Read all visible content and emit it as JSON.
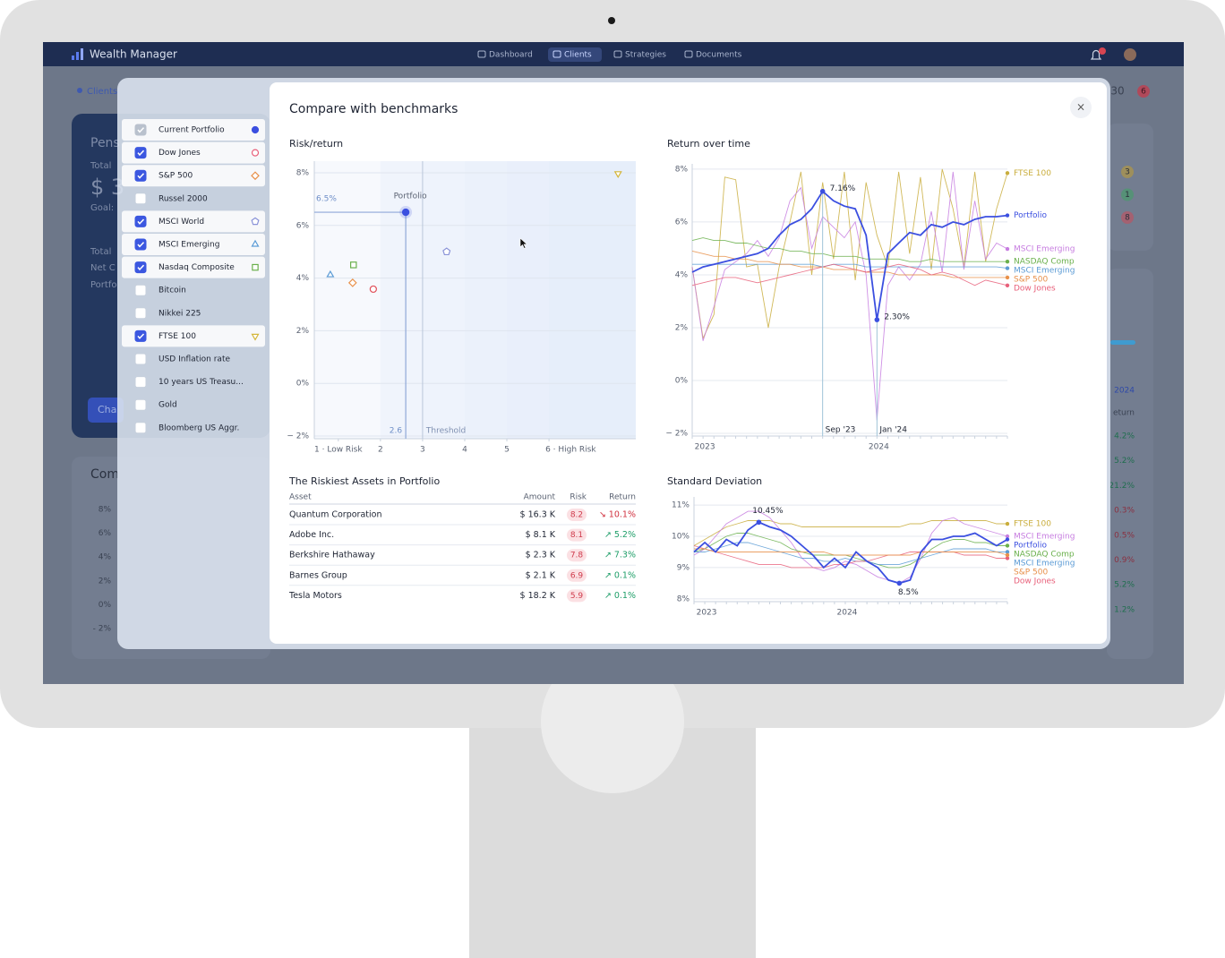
{
  "navbar": {
    "brand": "Wealth Manager",
    "items": [
      {
        "label": "Dashboard",
        "active": false
      },
      {
        "label": "Clients",
        "active": true
      },
      {
        "label": "Strategies",
        "active": false
      },
      {
        "label": "Documents",
        "active": false
      }
    ]
  },
  "background": {
    "breadcrumb": "Clients",
    "card_lines": [
      "Pens",
      "Total",
      "$ 3",
      "Goal:",
      "Total",
      "Net C",
      "Portfo"
    ],
    "button": "Cha",
    "section": "Com",
    "axis_labels": [
      "8%",
      "6%",
      "4%",
      "2%",
      "0%",
      "- 2%"
    ],
    "count": "30",
    "badge": "6",
    "status_badges": [
      {
        "text": "3",
        "color": "#c9a227"
      },
      {
        "text": "1",
        "color": "#3aa55d"
      },
      {
        "text": "8",
        "color": "#d64552"
      }
    ],
    "column_header": "2024",
    "column_subheader": "eturn",
    "column_values": [
      {
        "text": "4.2%",
        "trend": "up"
      },
      {
        "text": "5.2%",
        "trend": "up"
      },
      {
        "text": "21.2%",
        "trend": "up"
      },
      {
        "text": "0.3%",
        "trend": "down"
      },
      {
        "text": "0.5%",
        "trend": "down"
      },
      {
        "text": "0.9%",
        "trend": "down"
      },
      {
        "text": "5.2%",
        "trend": "up"
      },
      {
        "text": "1.2%",
        "trend": "up"
      }
    ]
  },
  "modal": {
    "title": "Compare with benchmarks",
    "close": "×",
    "benchmarks": [
      {
        "label": "Current Portfolio",
        "checked": true,
        "locked": true,
        "marker": "dot",
        "color": "#3b4fe0"
      },
      {
        "label": "Dow Jones",
        "checked": true,
        "marker": "circle",
        "color": "#e8607a"
      },
      {
        "label": "S&P 500",
        "checked": true,
        "marker": "diamond",
        "color": "#e8904a"
      },
      {
        "label": "Russel 2000",
        "checked": false
      },
      {
        "label": "MSCI World",
        "checked": true,
        "marker": "pentagon",
        "color": "#8a93d8"
      },
      {
        "label": "MSCI Emerging",
        "checked": true,
        "marker": "triangle",
        "color": "#5b9bd5"
      },
      {
        "label": "Nasdaq Composite",
        "checked": true,
        "marker": "square",
        "color": "#6ab04c"
      },
      {
        "label": "Bitcoin",
        "checked": false
      },
      {
        "label": "Nikkei 225",
        "checked": false
      },
      {
        "label": "FTSE 100",
        "checked": true,
        "marker": "triangle-down",
        "color": "#d4b63a"
      },
      {
        "label": "USD Inflation rate",
        "checked": false
      },
      {
        "label": "10 years US Treasu...",
        "checked": false
      },
      {
        "label": "Gold",
        "checked": false
      },
      {
        "label": "Bloomberg US Aggr.",
        "checked": false
      }
    ],
    "risk_return": {
      "type": "scatter",
      "title": "Risk/return",
      "xlim": [
        0.43,
        8.06
      ],
      "ylim": [
        -2.1,
        8.44
      ],
      "xticks": [
        {
          "value": 1,
          "label": "1 · Low Risk"
        },
        2,
        3,
        4,
        5,
        {
          "value": 6,
          "label": "6 · High Risk"
        }
      ],
      "yticks": [
        {
          "value": 8,
          "label": "8%"
        },
        {
          "value": 6,
          "label": "6%"
        },
        {
          "value": 4,
          "label": "4%"
        },
        {
          "value": 2,
          "label": "2%"
        },
        {
          "value": 0,
          "label": "0%"
        },
        {
          "value": -2,
          "label": "− 2%"
        }
      ],
      "grid": true,
      "points": [
        {
          "x": 0.81,
          "y": 4.12,
          "marker": "triangle",
          "color": "#5b9bd5"
        },
        {
          "x": 1.36,
          "y": 4.5,
          "marker": "square",
          "color": "#6ab04c"
        },
        {
          "x": 1.34,
          "y": 3.82,
          "marker": "diamond",
          "color": "#e8904a"
        },
        {
          "x": 1.83,
          "y": 3.58,
          "marker": "circle",
          "color": "#e0505a"
        },
        {
          "x": 3.57,
          "y": 5.0,
          "marker": "pentagon",
          "color": "#8a93d8"
        },
        {
          "x": 7.64,
          "y": 7.97,
          "marker": "triangle-down",
          "color": "#d4b63a"
        }
      ],
      "portfolio": {
        "label": "Portfolio",
        "x": 2.6,
        "y": 6.5,
        "x_label": "2.6",
        "y_label": "6.5%",
        "color": "#3b4fe0"
      },
      "threshold": {
        "label": "Threshold",
        "x": 3
      }
    },
    "return_over_time": {
      "type": "line",
      "title": "Return over time",
      "categories": [
        null,
        "2023",
        null,
        null,
        null,
        null,
        null,
        null,
        null,
        null,
        null,
        null,
        null,
        null,
        null,
        null,
        null,
        "2024",
        null,
        null,
        null,
        null,
        null,
        null,
        null,
        null,
        null,
        null,
        null,
        null
      ],
      "x_annotations": [
        null,
        null,
        null,
        null,
        null,
        null,
        null,
        null,
        null,
        null,
        null,
        null,
        "Sep '23",
        null,
        null,
        null,
        null,
        "Jan '24",
        null,
        null,
        null,
        null,
        null,
        null,
        null,
        null,
        null,
        null,
        null,
        null
      ],
      "ylim": [
        -2.1,
        8.2
      ],
      "yticks": [
        {
          "value": 8,
          "label": "8%"
        },
        {
          "value": 6,
          "label": "6%"
        },
        {
          "value": 4,
          "label": "4%"
        },
        {
          "value": 2,
          "label": "2%"
        },
        {
          "value": 0,
          "label": "0%"
        },
        {
          "value": -2,
          "label": "− 2%"
        }
      ],
      "grid": true,
      "series": [
        {
          "name": "FTSE 100",
          "color": "#c9ad3c",
          "values": [
            4.3,
            1.6,
            2.5,
            7.7,
            7.6,
            4.3,
            4.4,
            2.0,
            4.3,
            6.0,
            7.9,
            4.0,
            7.5,
            4.6,
            7.9,
            3.8,
            7.5,
            5.5,
            4.3,
            7.9,
            4.8,
            7.7,
            4.2,
            8.0,
            6.5,
            4.3,
            7.9,
            4.5,
            6.5,
            7.85
          ]
        },
        {
          "name": "Portfolio",
          "color": "#3b4fe0",
          "highlight": true,
          "values": [
            4.1,
            4.3,
            4.4,
            4.5,
            4.6,
            4.7,
            4.8,
            5.0,
            5.5,
            5.9,
            6.1,
            6.5,
            7.16,
            6.8,
            6.6,
            6.5,
            5.5,
            2.3,
            4.8,
            5.2,
            5.6,
            5.5,
            5.9,
            5.8,
            6.0,
            5.9,
            6.1,
            6.2,
            6.2,
            6.25
          ],
          "value_labels": [
            null,
            null,
            null,
            null,
            null,
            null,
            null,
            null,
            null,
            null,
            null,
            null,
            "7.16%",
            null,
            null,
            null,
            null,
            "2.30%",
            null,
            null,
            null,
            null,
            null,
            null,
            null,
            null,
            null,
            null,
            null,
            null
          ]
        },
        {
          "name": "MSCI Emerging",
          "color": "#c77de0",
          "values": [
            4.3,
            1.5,
            2.8,
            4.2,
            4.5,
            4.8,
            5.3,
            4.7,
            5.4,
            6.8,
            7.3,
            5.0,
            6.2,
            5.8,
            5.4,
            6.0,
            4.0,
            -1.5,
            3.6,
            4.3,
            3.8,
            4.4,
            6.4,
            4.1,
            7.9,
            4.2,
            6.8,
            4.6,
            5.2,
            4.98
          ]
        },
        {
          "name": "NASDAQ Comp",
          "color": "#6ab04c",
          "values": [
            5.3,
            5.4,
            5.3,
            5.3,
            5.2,
            5.2,
            5.1,
            5.0,
            5.0,
            4.9,
            4.9,
            4.8,
            4.8,
            4.7,
            4.7,
            4.7,
            4.6,
            4.6,
            4.6,
            4.6,
            4.5,
            4.5,
            4.6,
            4.5,
            4.5,
            4.5,
            4.5,
            4.5,
            4.5,
            4.5
          ]
        },
        {
          "name": "MSCI Emerging",
          "color": "#5b9bd5",
          "values": [
            4.4,
            4.4,
            4.4,
            4.4,
            4.4,
            4.4,
            4.4,
            4.4,
            4.4,
            4.4,
            4.4,
            4.4,
            4.3,
            4.4,
            4.4,
            4.4,
            4.3,
            4.3,
            4.3,
            4.3,
            4.3,
            4.3,
            4.3,
            4.3,
            4.3,
            4.3,
            4.3,
            4.3,
            4.3,
            4.25
          ]
        },
        {
          "name": "S&P 500",
          "color": "#e8904a",
          "values": [
            4.9,
            4.8,
            4.7,
            4.7,
            4.6,
            4.6,
            4.5,
            4.5,
            4.4,
            4.4,
            4.3,
            4.3,
            4.3,
            4.2,
            4.2,
            4.2,
            4.1,
            4.1,
            4.1,
            4.0,
            4.0,
            4.0,
            4.0,
            4.0,
            3.9,
            3.9,
            3.9,
            3.9,
            3.9,
            3.9
          ]
        },
        {
          "name": "Dow Jones",
          "color": "#e8607a",
          "values": [
            3.6,
            3.7,
            3.8,
            3.9,
            3.9,
            3.8,
            3.7,
            3.8,
            3.9,
            4.0,
            4.1,
            4.2,
            4.3,
            4.4,
            4.3,
            4.2,
            4.1,
            4.2,
            4.3,
            4.4,
            4.3,
            4.2,
            4.0,
            4.1,
            4.0,
            3.8,
            3.6,
            3.8,
            3.7,
            3.6
          ]
        }
      ]
    },
    "riskiest_assets": {
      "title": "The Riskiest Assets in Portfolio",
      "columns": [
        "Asset",
        "Amount",
        "Risk",
        "Return"
      ],
      "rows": [
        {
          "asset": "Quantum Corporation",
          "amount": "$ 16.3 K",
          "risk": 8.2,
          "return": "↘ 10.1%",
          "trend": "down"
        },
        {
          "asset": "Adobe Inc.",
          "amount": "$ 8.1 K",
          "risk": 8.1,
          "return": "↗ 5.2%",
          "trend": "up"
        },
        {
          "asset": "Berkshire Hathaway",
          "amount": "$ 2.3 K",
          "risk": 7.8,
          "return": "↗ 7.3%",
          "trend": "up"
        },
        {
          "asset": "Barnes Group",
          "amount": "$ 2.1 K",
          "risk": 6.9,
          "return": "↗ 0.1%",
          "trend": "up"
        },
        {
          "asset": "Tesla Motors",
          "amount": "$ 18.2 K",
          "risk": 5.9,
          "return": "↗ 0.1%",
          "trend": "up"
        }
      ]
    },
    "standard_deviation": {
      "type": "line",
      "title": "Standard Deviation",
      "categories": [
        null,
        "2023",
        null,
        null,
        null,
        null,
        null,
        null,
        null,
        null,
        null,
        null,
        null,
        null,
        "2024",
        null,
        null,
        null,
        null,
        null,
        null,
        null,
        null,
        null,
        null,
        null,
        null,
        null,
        null,
        null
      ],
      "ylim": [
        7.91,
        11.26
      ],
      "yticks": [
        {
          "value": 11,
          "label": "11%"
        },
        {
          "value": 10,
          "label": "10%"
        },
        {
          "value": 9,
          "label": "9%"
        },
        {
          "value": 8,
          "label": "8%"
        }
      ],
      "grid": true,
      "series": [
        {
          "name": "FTSE 100",
          "color": "#c9ad3c",
          "values": [
            9.7,
            9.9,
            10.1,
            10.3,
            10.4,
            10.5,
            10.5,
            10.5,
            10.4,
            10.4,
            10.3,
            10.3,
            10.3,
            10.3,
            10.3,
            10.3,
            10.3,
            10.3,
            10.3,
            10.3,
            10.4,
            10.4,
            10.5,
            10.5,
            10.5,
            10.5,
            10.5,
            10.5,
            10.4,
            10.4
          ]
        },
        {
          "name": "MSCI Emerging",
          "color": "#c77de0",
          "values": [
            9.4,
            9.6,
            10.0,
            10.4,
            10.6,
            10.8,
            10.8,
            10.6,
            10.2,
            9.8,
            9.3,
            9.0,
            8.9,
            9.0,
            9.2,
            9.1,
            8.9,
            8.7,
            8.6,
            8.5,
            8.7,
            9.3,
            10.1,
            10.5,
            10.6,
            10.4,
            10.3,
            10.2,
            10.1,
            10.0
          ]
        },
        {
          "name": "Portfolio",
          "color": "#3b4fe0",
          "highlight": true,
          "values": [
            9.5,
            9.8,
            9.5,
            9.9,
            9.7,
            10.2,
            10.45,
            10.3,
            10.2,
            10.0,
            9.7,
            9.4,
            9.0,
            9.3,
            9.0,
            9.5,
            9.2,
            9.0,
            8.6,
            8.5,
            8.6,
            9.5,
            9.9,
            9.9,
            10.0,
            10.0,
            10.1,
            9.9,
            9.7,
            9.9
          ],
          "value_labels": [
            null,
            null,
            null,
            null,
            null,
            null,
            "10.45%",
            null,
            null,
            null,
            null,
            null,
            null,
            null,
            null,
            null,
            null,
            null,
            null,
            "8.5%",
            null,
            null,
            null,
            null,
            null,
            null,
            null,
            null,
            null,
            null
          ]
        },
        {
          "name": "NASDAQ Comp",
          "color": "#6ab04c",
          "values": [
            9.5,
            9.6,
            9.8,
            10.0,
            10.1,
            10.1,
            10.0,
            9.9,
            9.8,
            9.6,
            9.5,
            9.4,
            9.4,
            9.4,
            9.4,
            9.3,
            9.2,
            9.1,
            9.0,
            9.0,
            9.1,
            9.3,
            9.6,
            9.8,
            9.9,
            9.9,
            9.8,
            9.8,
            9.7,
            9.7
          ]
        },
        {
          "name": "MSCI Emerging",
          "color": "#5b9bd5",
          "values": [
            9.5,
            9.5,
            9.6,
            9.7,
            9.8,
            9.8,
            9.7,
            9.6,
            9.5,
            9.4,
            9.3,
            9.3,
            9.2,
            9.2,
            9.3,
            9.2,
            9.2,
            9.1,
            9.1,
            9.1,
            9.2,
            9.3,
            9.4,
            9.5,
            9.6,
            9.6,
            9.6,
            9.6,
            9.5,
            9.5
          ]
        },
        {
          "name": "Dow Jones",
          "color": "#e8607a",
          "values": [
            9.7,
            9.6,
            9.5,
            9.4,
            9.3,
            9.2,
            9.1,
            9.1,
            9.1,
            9.0,
            9.0,
            9.0,
            9.0,
            9.1,
            9.1,
            9.2,
            9.2,
            9.3,
            9.4,
            9.4,
            9.5,
            9.5,
            9.5,
            9.5,
            9.5,
            9.4,
            9.4,
            9.4,
            9.3,
            9.3
          ]
        },
        {
          "name": "S&P 500",
          "color": "#e8904a",
          "values": [
            9.6,
            9.6,
            9.5,
            9.5,
            9.5,
            9.5,
            9.5,
            9.5,
            9.5,
            9.5,
            9.5,
            9.5,
            9.5,
            9.4,
            9.4,
            9.4,
            9.4,
            9.4,
            9.4,
            9.4,
            9.4,
            9.5,
            9.5,
            9.5,
            9.5,
            9.5,
            9.5,
            9.5,
            9.5,
            9.4
          ]
        }
      ]
    }
  }
}
